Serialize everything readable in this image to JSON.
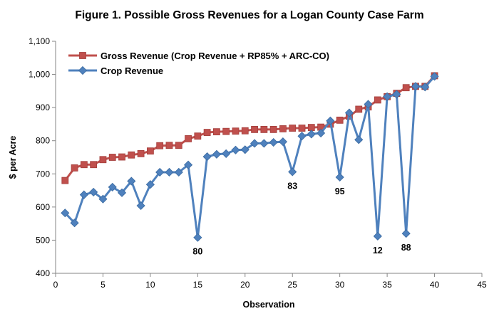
{
  "chart_data": {
    "type": "line",
    "title": "Figure 1.  Possible Gross Revenues for a Logan County Case Farm",
    "xlabel": "Observation",
    "ylabel": "$ per Acre",
    "xlim": [
      0,
      45
    ],
    "ylim": [
      400,
      1100
    ],
    "x_ticks": [
      0,
      5,
      10,
      15,
      20,
      25,
      30,
      35,
      40,
      45
    ],
    "y_ticks": [
      400,
      500,
      600,
      700,
      800,
      900,
      1000,
      1100
    ],
    "y_tick_labels": [
      "400",
      "500",
      "600",
      "700",
      "800",
      "900",
      "1,000",
      "1,100"
    ],
    "grid": "none",
    "legend_position": "top-left",
    "x": [
      1,
      2,
      3,
      4,
      5,
      6,
      7,
      8,
      9,
      10,
      11,
      12,
      13,
      14,
      15,
      16,
      17,
      18,
      19,
      20,
      21,
      22,
      23,
      24,
      25,
      26,
      27,
      28,
      29,
      30,
      31,
      32,
      33,
      34,
      35,
      36,
      37,
      38,
      39,
      40
    ],
    "series": [
      {
        "name": "Gross Revenue (Crop Revenue + RP85% + ARC-CO)",
        "color": "#C0504D",
        "marker": "square",
        "values": [
          680,
          718,
          728,
          728,
          743,
          750,
          751,
          757,
          761,
          769,
          785,
          786,
          786,
          806,
          814,
          825,
          827,
          828,
          829,
          830,
          834,
          834,
          834,
          836,
          838,
          838,
          840,
          841,
          850,
          862,
          874,
          895,
          902,
          923,
          933,
          943,
          960,
          964,
          964,
          996
        ]
      },
      {
        "name": "Crop Revenue",
        "color": "#4F81BD",
        "marker": "diamond",
        "values": [
          582,
          552,
          637,
          645,
          624,
          660,
          643,
          678,
          604,
          668,
          705,
          705,
          705,
          727,
          508,
          752,
          759,
          761,
          772,
          773,
          792,
          792,
          795,
          797,
          706,
          814,
          820,
          823,
          860,
          690,
          884,
          803,
          910,
          512,
          933,
          940,
          520,
          964,
          962,
          994
        ]
      }
    ],
    "annotations": [
      {
        "text": "80",
        "x": 15,
        "y": 508
      },
      {
        "text": "83",
        "x": 25,
        "y": 706
      },
      {
        "text": "95",
        "x": 30,
        "y": 690
      },
      {
        "text": "12",
        "x": 34,
        "y": 512
      },
      {
        "text": "88",
        "x": 37,
        "y": 520
      }
    ]
  }
}
